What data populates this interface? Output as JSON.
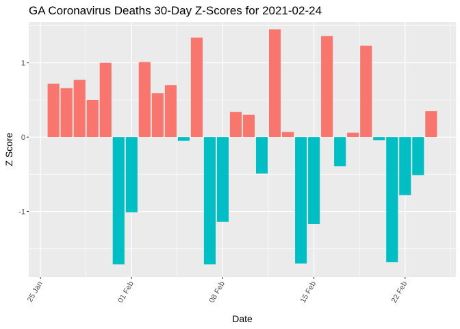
{
  "chart_data": {
    "type": "bar",
    "title": "GA Coronavirus Deaths 30-Day Z-Scores for 2021-02-24",
    "xlabel": "Date",
    "ylabel": "Z Score",
    "x_range_days": [
      -0.9,
      31.9
    ],
    "ylim": [
      -1.88,
      1.55
    ],
    "yticks": [
      {
        "value": -1,
        "label": "-1"
      },
      {
        "value": 0,
        "label": "0"
      },
      {
        "value": 1,
        "label": "1"
      }
    ],
    "xticks": [
      {
        "day": 0,
        "label": "25 Jan"
      },
      {
        "day": 7,
        "label": "01 Feb"
      },
      {
        "day": 14,
        "label": "08 Feb"
      },
      {
        "day": 21,
        "label": "15 Feb"
      },
      {
        "day": 28,
        "label": "22 Feb"
      }
    ],
    "positive_color": "#F8766D",
    "negative_color": "#00BFC4",
    "panel_color": "#EBEBEB",
    "grid_color": "#FFFFFF",
    "bars": [
      {
        "date": "2021-01-26",
        "day": 1,
        "value": 0.72
      },
      {
        "date": "2021-01-27",
        "day": 2,
        "value": 0.66
      },
      {
        "date": "2021-01-28",
        "day": 3,
        "value": 0.77
      },
      {
        "date": "2021-01-29",
        "day": 4,
        "value": 0.5
      },
      {
        "date": "2021-01-30",
        "day": 5,
        "value": 1.0
      },
      {
        "date": "2021-01-31",
        "day": 6,
        "value": -1.71
      },
      {
        "date": "2021-02-01",
        "day": 7,
        "value": -1.01
      },
      {
        "date": "2021-02-02",
        "day": 8,
        "value": 1.01
      },
      {
        "date": "2021-02-03",
        "day": 9,
        "value": 0.59
      },
      {
        "date": "2021-02-04",
        "day": 10,
        "value": 0.7
      },
      {
        "date": "2021-02-05",
        "day": 11,
        "value": -0.05
      },
      {
        "date": "2021-02-06",
        "day": 12,
        "value": 1.34
      },
      {
        "date": "2021-02-07",
        "day": 13,
        "value": -1.71
      },
      {
        "date": "2021-02-08",
        "day": 14,
        "value": -1.14
      },
      {
        "date": "2021-02-09",
        "day": 15,
        "value": 0.34
      },
      {
        "date": "2021-02-10",
        "day": 16,
        "value": 0.3
      },
      {
        "date": "2021-02-11",
        "day": 17,
        "value": -0.49
      },
      {
        "date": "2021-02-12",
        "day": 18,
        "value": 1.45
      },
      {
        "date": "2021-02-13",
        "day": 19,
        "value": 0.07
      },
      {
        "date": "2021-02-14",
        "day": 20,
        "value": -1.7
      },
      {
        "date": "2021-02-15",
        "day": 21,
        "value": -1.17
      },
      {
        "date": "2021-02-16",
        "day": 22,
        "value": 1.36
      },
      {
        "date": "2021-02-17",
        "day": 23,
        "value": -0.39
      },
      {
        "date": "2021-02-18",
        "day": 24,
        "value": 0.06
      },
      {
        "date": "2021-02-19",
        "day": 25,
        "value": 1.23
      },
      {
        "date": "2021-02-20",
        "day": 26,
        "value": -0.04
      },
      {
        "date": "2021-02-21",
        "day": 27,
        "value": -1.68
      },
      {
        "date": "2021-02-22",
        "day": 28,
        "value": -0.78
      },
      {
        "date": "2021-02-23",
        "day": 29,
        "value": -0.51
      },
      {
        "date": "2021-02-24",
        "day": 30,
        "value": 0.35
      }
    ]
  }
}
